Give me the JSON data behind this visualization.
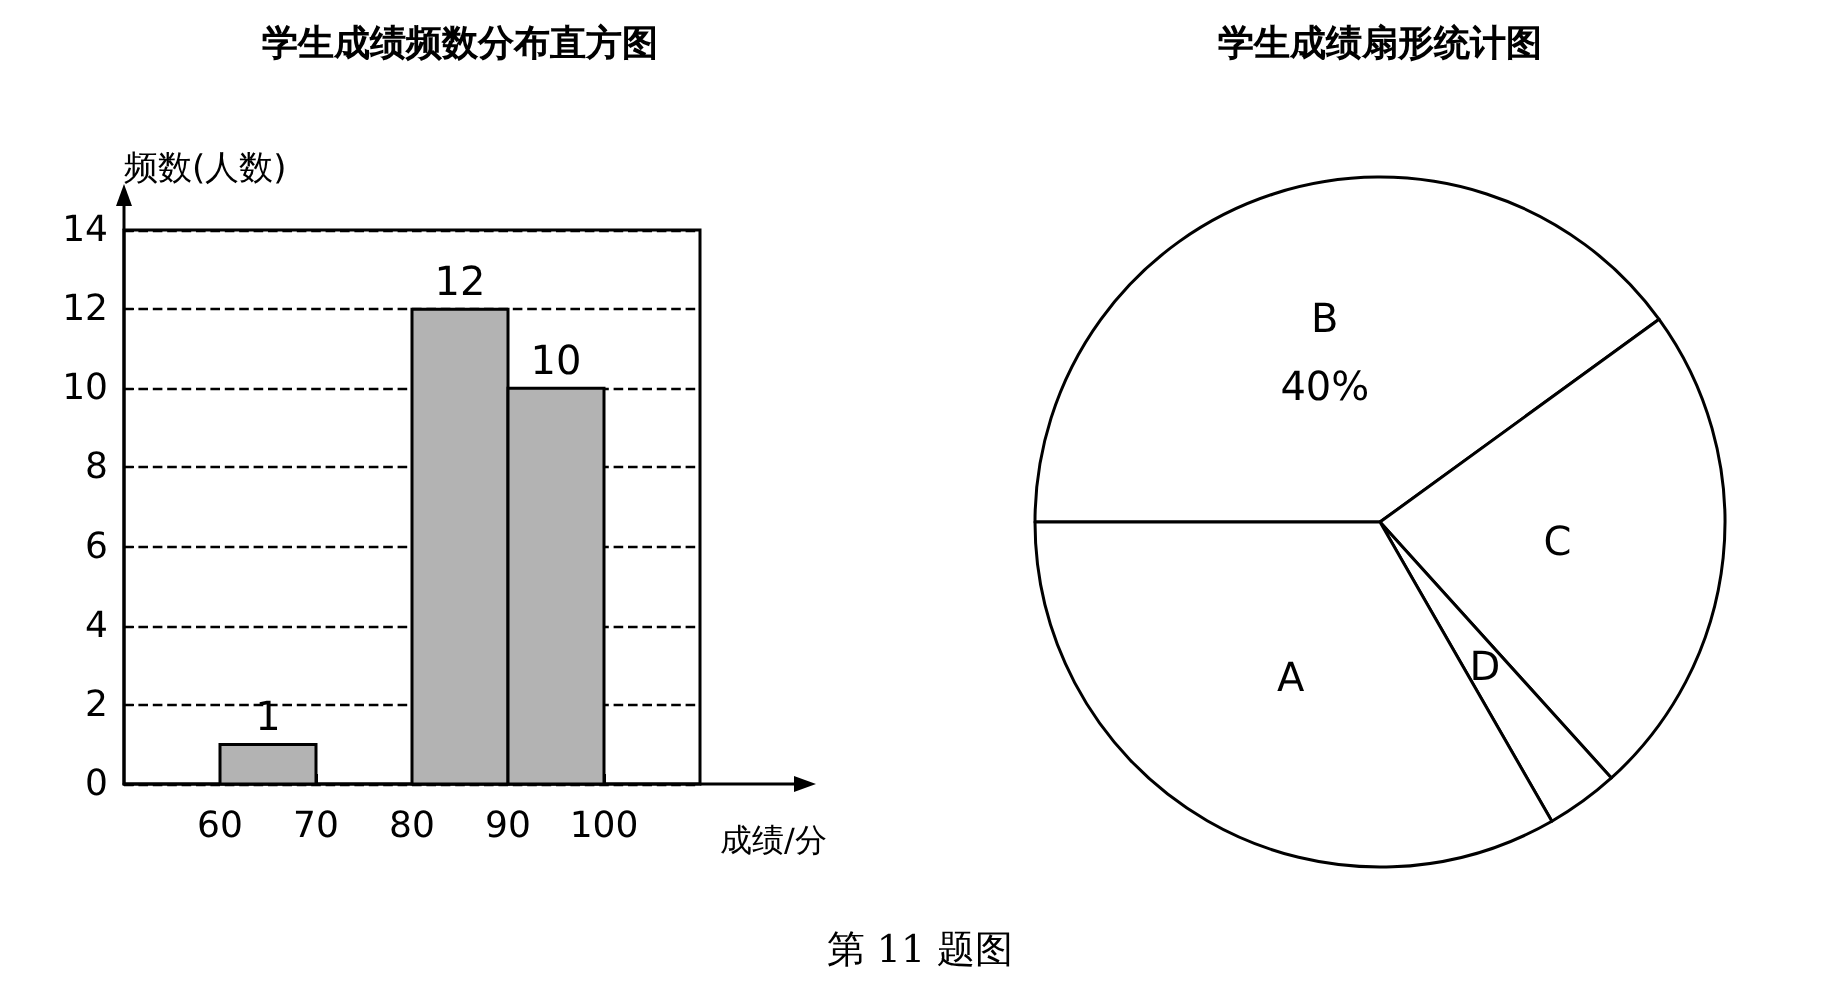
{
  "chart_data": [
    {
      "type": "histogram",
      "title": "学生成绩频数分布直方图",
      "xlabel": "成绩/分",
      "ylabel": "频数(人数)",
      "bins": [
        60,
        70,
        80,
        90,
        100
      ],
      "values": [
        1,
        null,
        12,
        10
      ],
      "color": "#b3b3b3",
      "data_labels": true,
      "xlim": [
        50,
        110
      ],
      "xticks": [
        60,
        70,
        80,
        90,
        100
      ],
      "ylim": [
        0,
        14
      ],
      "yticks": [
        0,
        2,
        4,
        6,
        8,
        10,
        12,
        14
      ],
      "grid": "y",
      "annotations": [
        "第 11 题图"
      ]
    },
    {
      "type": "pie",
      "title": "学生成绩扇形统计图",
      "categories": [
        "B",
        "C",
        "D",
        "A"
      ],
      "values": [
        40,
        23.3,
        3.4,
        33.3
      ],
      "colors": [
        "#ffffff",
        "#ffffff",
        "#ffffff",
        "#ffffff"
      ],
      "value_labels": [
        "40%",
        null,
        null,
        null
      ]
    }
  ]
}
